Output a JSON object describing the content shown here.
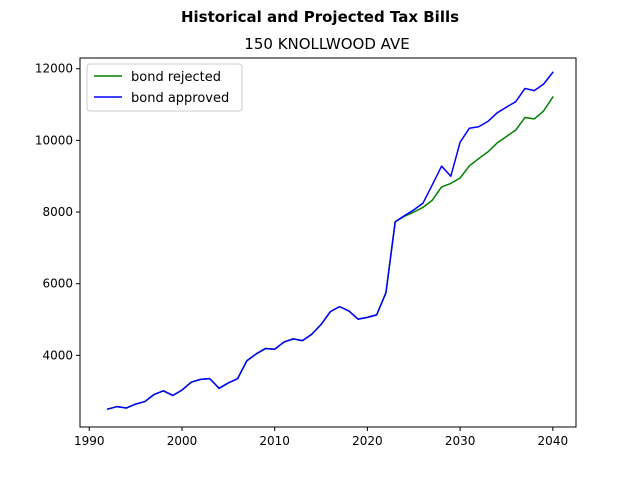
{
  "chart_data": {
    "type": "line",
    "suptitle": "Historical and Projected Tax Bills",
    "title": "150 KNOLLWOOD AVE",
    "xlabel": "",
    "ylabel": "",
    "xlim": [
      1989,
      2042.5
    ],
    "ylim": [
      2000,
      12300
    ],
    "xticks": [
      1990,
      2000,
      2010,
      2020,
      2030,
      2040
    ],
    "yticks": [
      4000,
      6000,
      8000,
      10000,
      12000
    ],
    "legend_position": "upper left",
    "grid": false,
    "x": [
      1992,
      1993,
      1994,
      1995,
      1996,
      1997,
      1998,
      1999,
      2000,
      2001,
      2002,
      2003,
      2004,
      2005,
      2006,
      2007,
      2008,
      2009,
      2010,
      2011,
      2012,
      2013,
      2014,
      2015,
      2016,
      2017,
      2018,
      2019,
      2020,
      2021,
      2022,
      2023,
      2024,
      2025,
      2026,
      2027,
      2028,
      2029,
      2030,
      2031,
      2032,
      2033,
      2034,
      2035,
      2036,
      2037,
      2038,
      2039,
      2040
    ],
    "series": [
      {
        "name": "bond rejected",
        "color": "#008000",
        "values": [
          2500,
          2570,
          2530,
          2640,
          2710,
          2910,
          3010,
          2880,
          3030,
          3250,
          3330,
          3350,
          3080,
          3230,
          3350,
          3850,
          4040,
          4190,
          4170,
          4370,
          4460,
          4410,
          4590,
          4860,
          5220,
          5360,
          5240,
          5010,
          5060,
          5130,
          5750,
          7730,
          7880,
          8000,
          8130,
          8330,
          8700,
          8800,
          8950,
          9290,
          9490,
          9680,
          9930,
          10110,
          10290,
          10640,
          10600,
          10820,
          11210
        ]
      },
      {
        "name": "bond approved",
        "color": "#0000ff",
        "values": [
          2500,
          2570,
          2530,
          2640,
          2710,
          2910,
          3010,
          2880,
          3030,
          3250,
          3330,
          3350,
          3080,
          3230,
          3350,
          3850,
          4040,
          4190,
          4170,
          4370,
          4460,
          4410,
          4590,
          4860,
          5220,
          5360,
          5240,
          5010,
          5060,
          5130,
          5750,
          7730,
          7900,
          8060,
          8250,
          8760,
          9280,
          9000,
          9950,
          10340,
          10380,
          10530,
          10770,
          10930,
          11080,
          11450,
          11390,
          11570,
          11900
        ]
      }
    ]
  }
}
